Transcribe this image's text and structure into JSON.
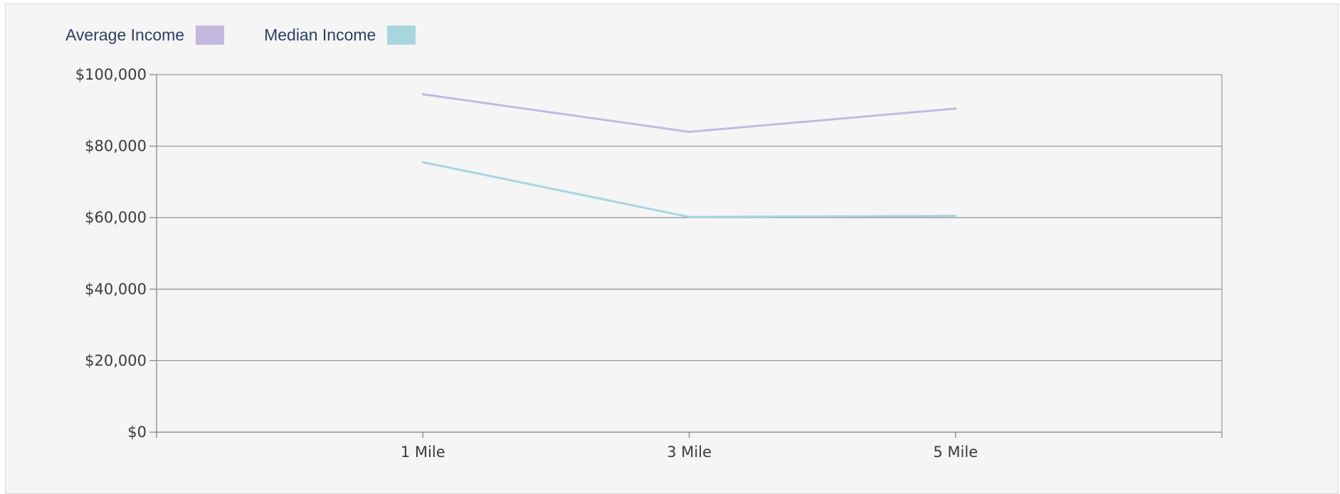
{
  "chart_data": {
    "type": "line",
    "categories": [
      "1 Mile",
      "3 Mile",
      "5 Mile"
    ],
    "series": [
      {
        "name": "Average Income",
        "values": [
          94500,
          84000,
          90500
        ],
        "color": "#c3b9df"
      },
      {
        "name": "Median Income",
        "values": [
          75500,
          60200,
          60500
        ],
        "color": "#a8d6df"
      }
    ],
    "ylim": [
      0,
      100000
    ],
    "yticks": [
      0,
      20000,
      40000,
      60000,
      80000,
      100000
    ],
    "ytick_labels": [
      "$0",
      "$20,000",
      "$40,000",
      "$60,000",
      "$80,000",
      "$100,000"
    ],
    "grid": true,
    "legend_position": "top-left"
  }
}
